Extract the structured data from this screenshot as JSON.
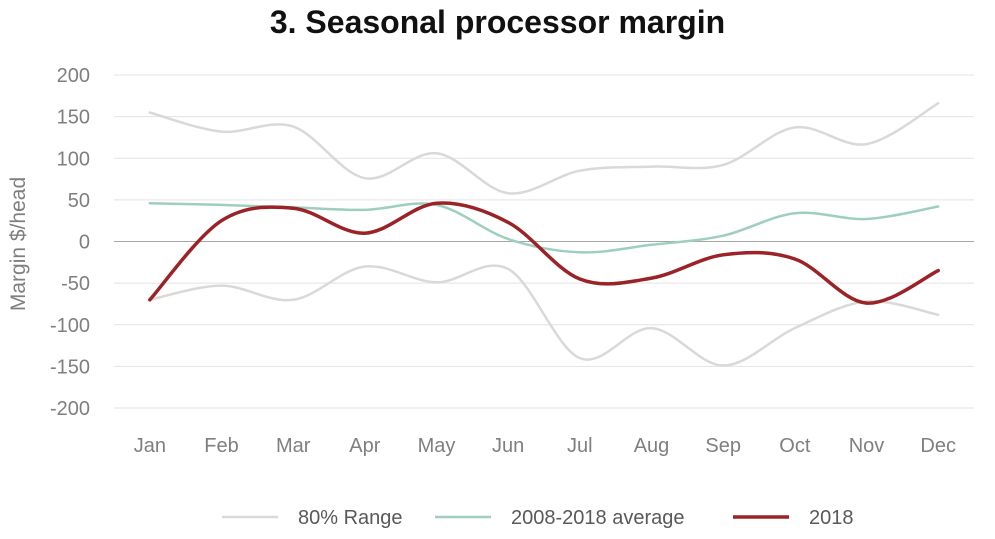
{
  "chart_data": {
    "type": "line",
    "title": "3. Seasonal processor margin",
    "xlabel": "",
    "ylabel": "Margin $/head",
    "ylim": [
      -200,
      200
    ],
    "yticks": [
      200,
      150,
      100,
      50,
      0,
      -50,
      -100,
      -150,
      -200
    ],
    "categories": [
      "Jan",
      "Feb",
      "Mar",
      "Apr",
      "May",
      "Jun",
      "Jul",
      "Aug",
      "Sep",
      "Oct",
      "Nov",
      "Dec"
    ],
    "grid": true,
    "legend_position": "bottom",
    "series": [
      {
        "name": "80% Range",
        "color": "#d9d9d6",
        "legend": true,
        "values": [
          155,
          132,
          138,
          76,
          106,
          58,
          85,
          90,
          92,
          137,
          117,
          166
        ]
      },
      {
        "name": "",
        "color": "#d9d9d6",
        "legend": false,
        "values": [
          -70,
          -53,
          -70,
          -30,
          -49,
          -33,
          -140,
          -104,
          -149,
          -104,
          -72,
          -88
        ]
      },
      {
        "name": "2008-2018 average",
        "color": "#9ecfbd",
        "legend": true,
        "values": [
          46,
          44,
          41,
          38,
          44,
          3,
          -13,
          -4,
          7,
          34,
          27,
          42
        ]
      },
      {
        "name": "2018",
        "color": "#9b2327",
        "legend": true,
        "values": [
          -70,
          25,
          40,
          10,
          46,
          23,
          -45,
          -44,
          -16,
          -21,
          -74,
          -35
        ]
      }
    ]
  }
}
